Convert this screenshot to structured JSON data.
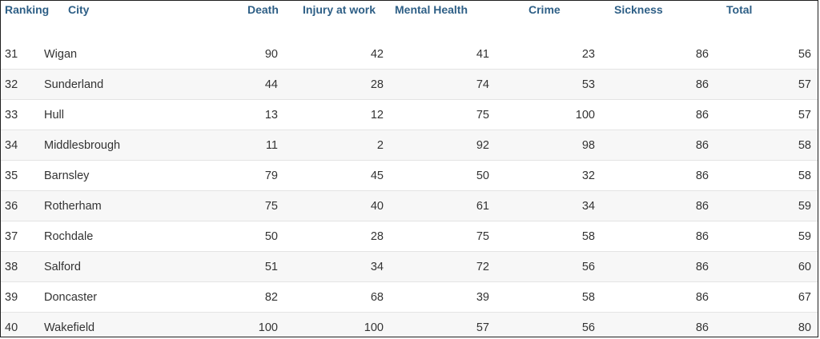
{
  "headers": {
    "ranking": "Ranking",
    "city": "City",
    "death": "Death",
    "injury": "Injury at work",
    "mental": "Mental Health",
    "crime": "Crime",
    "sickness": "Sickness",
    "total": "Total"
  },
  "rows": [
    {
      "rank": "31",
      "city": "Wigan",
      "death": "90",
      "injury": "42",
      "mental": "41",
      "crime": "23",
      "sickness": "86",
      "total": "56"
    },
    {
      "rank": "32",
      "city": "Sunderland",
      "death": "44",
      "injury": "28",
      "mental": "74",
      "crime": "53",
      "sickness": "86",
      "total": "57"
    },
    {
      "rank": "33",
      "city": "Hull",
      "death": "13",
      "injury": "12",
      "mental": "75",
      "crime": "100",
      "sickness": "86",
      "total": "57"
    },
    {
      "rank": "34",
      "city": "Middlesbrough",
      "death": "11",
      "injury": "2",
      "mental": "92",
      "crime": "98",
      "sickness": "86",
      "total": "58"
    },
    {
      "rank": "35",
      "city": "Barnsley",
      "death": "79",
      "injury": "45",
      "mental": "50",
      "crime": "32",
      "sickness": "86",
      "total": "58"
    },
    {
      "rank": "36",
      "city": "Rotherham",
      "death": "75",
      "injury": "40",
      "mental": "61",
      "crime": "34",
      "sickness": "86",
      "total": "59"
    },
    {
      "rank": "37",
      "city": "Rochdale",
      "death": "50",
      "injury": "28",
      "mental": "75",
      "crime": "58",
      "sickness": "86",
      "total": "59"
    },
    {
      "rank": "38",
      "city": "Salford",
      "death": "51",
      "injury": "34",
      "mental": "72",
      "crime": "56",
      "sickness": "86",
      "total": "60"
    },
    {
      "rank": "39",
      "city": "Doncaster",
      "death": "82",
      "injury": "68",
      "mental": "39",
      "crime": "58",
      "sickness": "86",
      "total": "67"
    },
    {
      "rank": "40",
      "city": "Wakefield",
      "death": "100",
      "injury": "100",
      "mental": "57",
      "crime": "56",
      "sickness": "86",
      "total": "80"
    }
  ]
}
